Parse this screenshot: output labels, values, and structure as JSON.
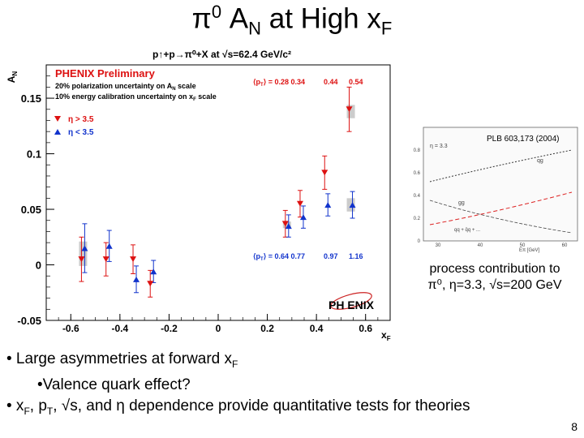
{
  "slide": {
    "title_main": "π",
    "title_sup": "0",
    "title_a": " A",
    "title_a_sub": "N",
    "title_mid": " at High x",
    "title_x_sub": "F",
    "subtitle": "p↑+p→π⁰+X at √s=62.4 GeV/c²",
    "caption_line1": "process contribution to",
    "caption_line2": "π⁰, η=3.3, √s=200 GeV",
    "bullet1_a": "• Large asymmetries at forward x",
    "bullet1_sub": "F",
    "bullet2": "•Valence quark effect?",
    "bullet3_a": "• x",
    "bullet3_sub1": "F",
    "bullet3_b": ", p",
    "bullet3_sub2": "T",
    "bullet3_c": ", √s, and η dependence provide quantitative tests for theories",
    "page_number": "8"
  },
  "chart_data": {
    "type": "scatter",
    "ylabel": "AN",
    "xlabel": "xF",
    "xlim": [
      -0.7,
      0.7
    ],
    "ylim": [
      -0.05,
      0.18
    ],
    "xticks": [
      "-0.6",
      "-0.4",
      "-0.2",
      "0",
      "0.2",
      "0.4",
      "0.6"
    ],
    "yticks": [
      "-0.05",
      "0",
      "0.05",
      "0.1",
      "0.15"
    ],
    "annotations": {
      "prelim": "PHENIX Preliminary",
      "note1": "20% polarization uncertainty on A",
      "note1_sub": "N",
      "note1_end": " scale",
      "note2": "10% energy calibration uncertainty on x",
      "note2_sub": "F",
      "note2_end": " scale",
      "pt_top_label": "⟨p",
      "pt_top_sub": "T",
      "pt_top_rest": "⟩ = 0.28 0.34",
      "pt_top_v3": "0.44",
      "pt_top_v4": "0.54",
      "pt_bot_label": "⟨p",
      "pt_bot_sub": "T",
      "pt_bot_rest": "⟩ = 0.64 0.77",
      "pt_bot_v3": "0.97",
      "pt_bot_v4": "1.16",
      "logo": "PH ENIX"
    },
    "series": [
      {
        "name": "η > 3.5",
        "color": "#dd1111",
        "marker": "triangle-down",
        "points": [
          {
            "x": -0.55,
            "y": 0.005,
            "err": 0.02
          },
          {
            "x": -0.45,
            "y": 0.005,
            "err": 0.015
          },
          {
            "x": -0.34,
            "y": 0.005,
            "err": 0.013
          },
          {
            "x": -0.27,
            "y": -0.017,
            "err": 0.012
          },
          {
            "x": 0.28,
            "y": 0.037,
            "err": 0.012
          },
          {
            "x": 0.34,
            "y": 0.055,
            "err": 0.012
          },
          {
            "x": 0.44,
            "y": 0.083,
            "err": 0.015
          },
          {
            "x": 0.54,
            "y": 0.14,
            "err": 0.02
          }
        ]
      },
      {
        "name": "η < 3.5",
        "color": "#1133cc",
        "marker": "triangle-up",
        "points": [
          {
            "x": -0.55,
            "y": 0.015,
            "err": 0.022
          },
          {
            "x": -0.45,
            "y": 0.017,
            "err": 0.014
          },
          {
            "x": -0.34,
            "y": -0.013,
            "err": 0.012
          },
          {
            "x": -0.27,
            "y": -0.006,
            "err": 0.01
          },
          {
            "x": 0.28,
            "y": 0.035,
            "err": 0.01
          },
          {
            "x": 0.34,
            "y": 0.043,
            "err": 0.01
          },
          {
            "x": 0.44,
            "y": 0.054,
            "err": 0.01
          },
          {
            "x": 0.54,
            "y": 0.054,
            "err": 0.012
          }
        ]
      }
    ],
    "sys_boxes": [
      {
        "x": -0.55,
        "y": 0.01,
        "h": 0.022
      },
      {
        "x": 0.28,
        "y": 0.036,
        "h": 0.006
      },
      {
        "x": 0.54,
        "y": 0.138,
        "h": 0.012
      },
      {
        "x": 0.54,
        "y": 0.054,
        "h": 0.012
      }
    ],
    "inset": {
      "reference": "PLB 603,173 (2004)",
      "eta_label": "η = 3.3",
      "qg_label": "qg",
      "gg_label": "gg",
      "qq_label": "qq + q̄q + ...",
      "xlabel": "Eπ [GeV]",
      "yticks": [
        "0",
        "0.2",
        "0.4",
        "0.6",
        "0.8"
      ],
      "xticks": [
        "30",
        "40",
        "50",
        "60"
      ]
    }
  }
}
